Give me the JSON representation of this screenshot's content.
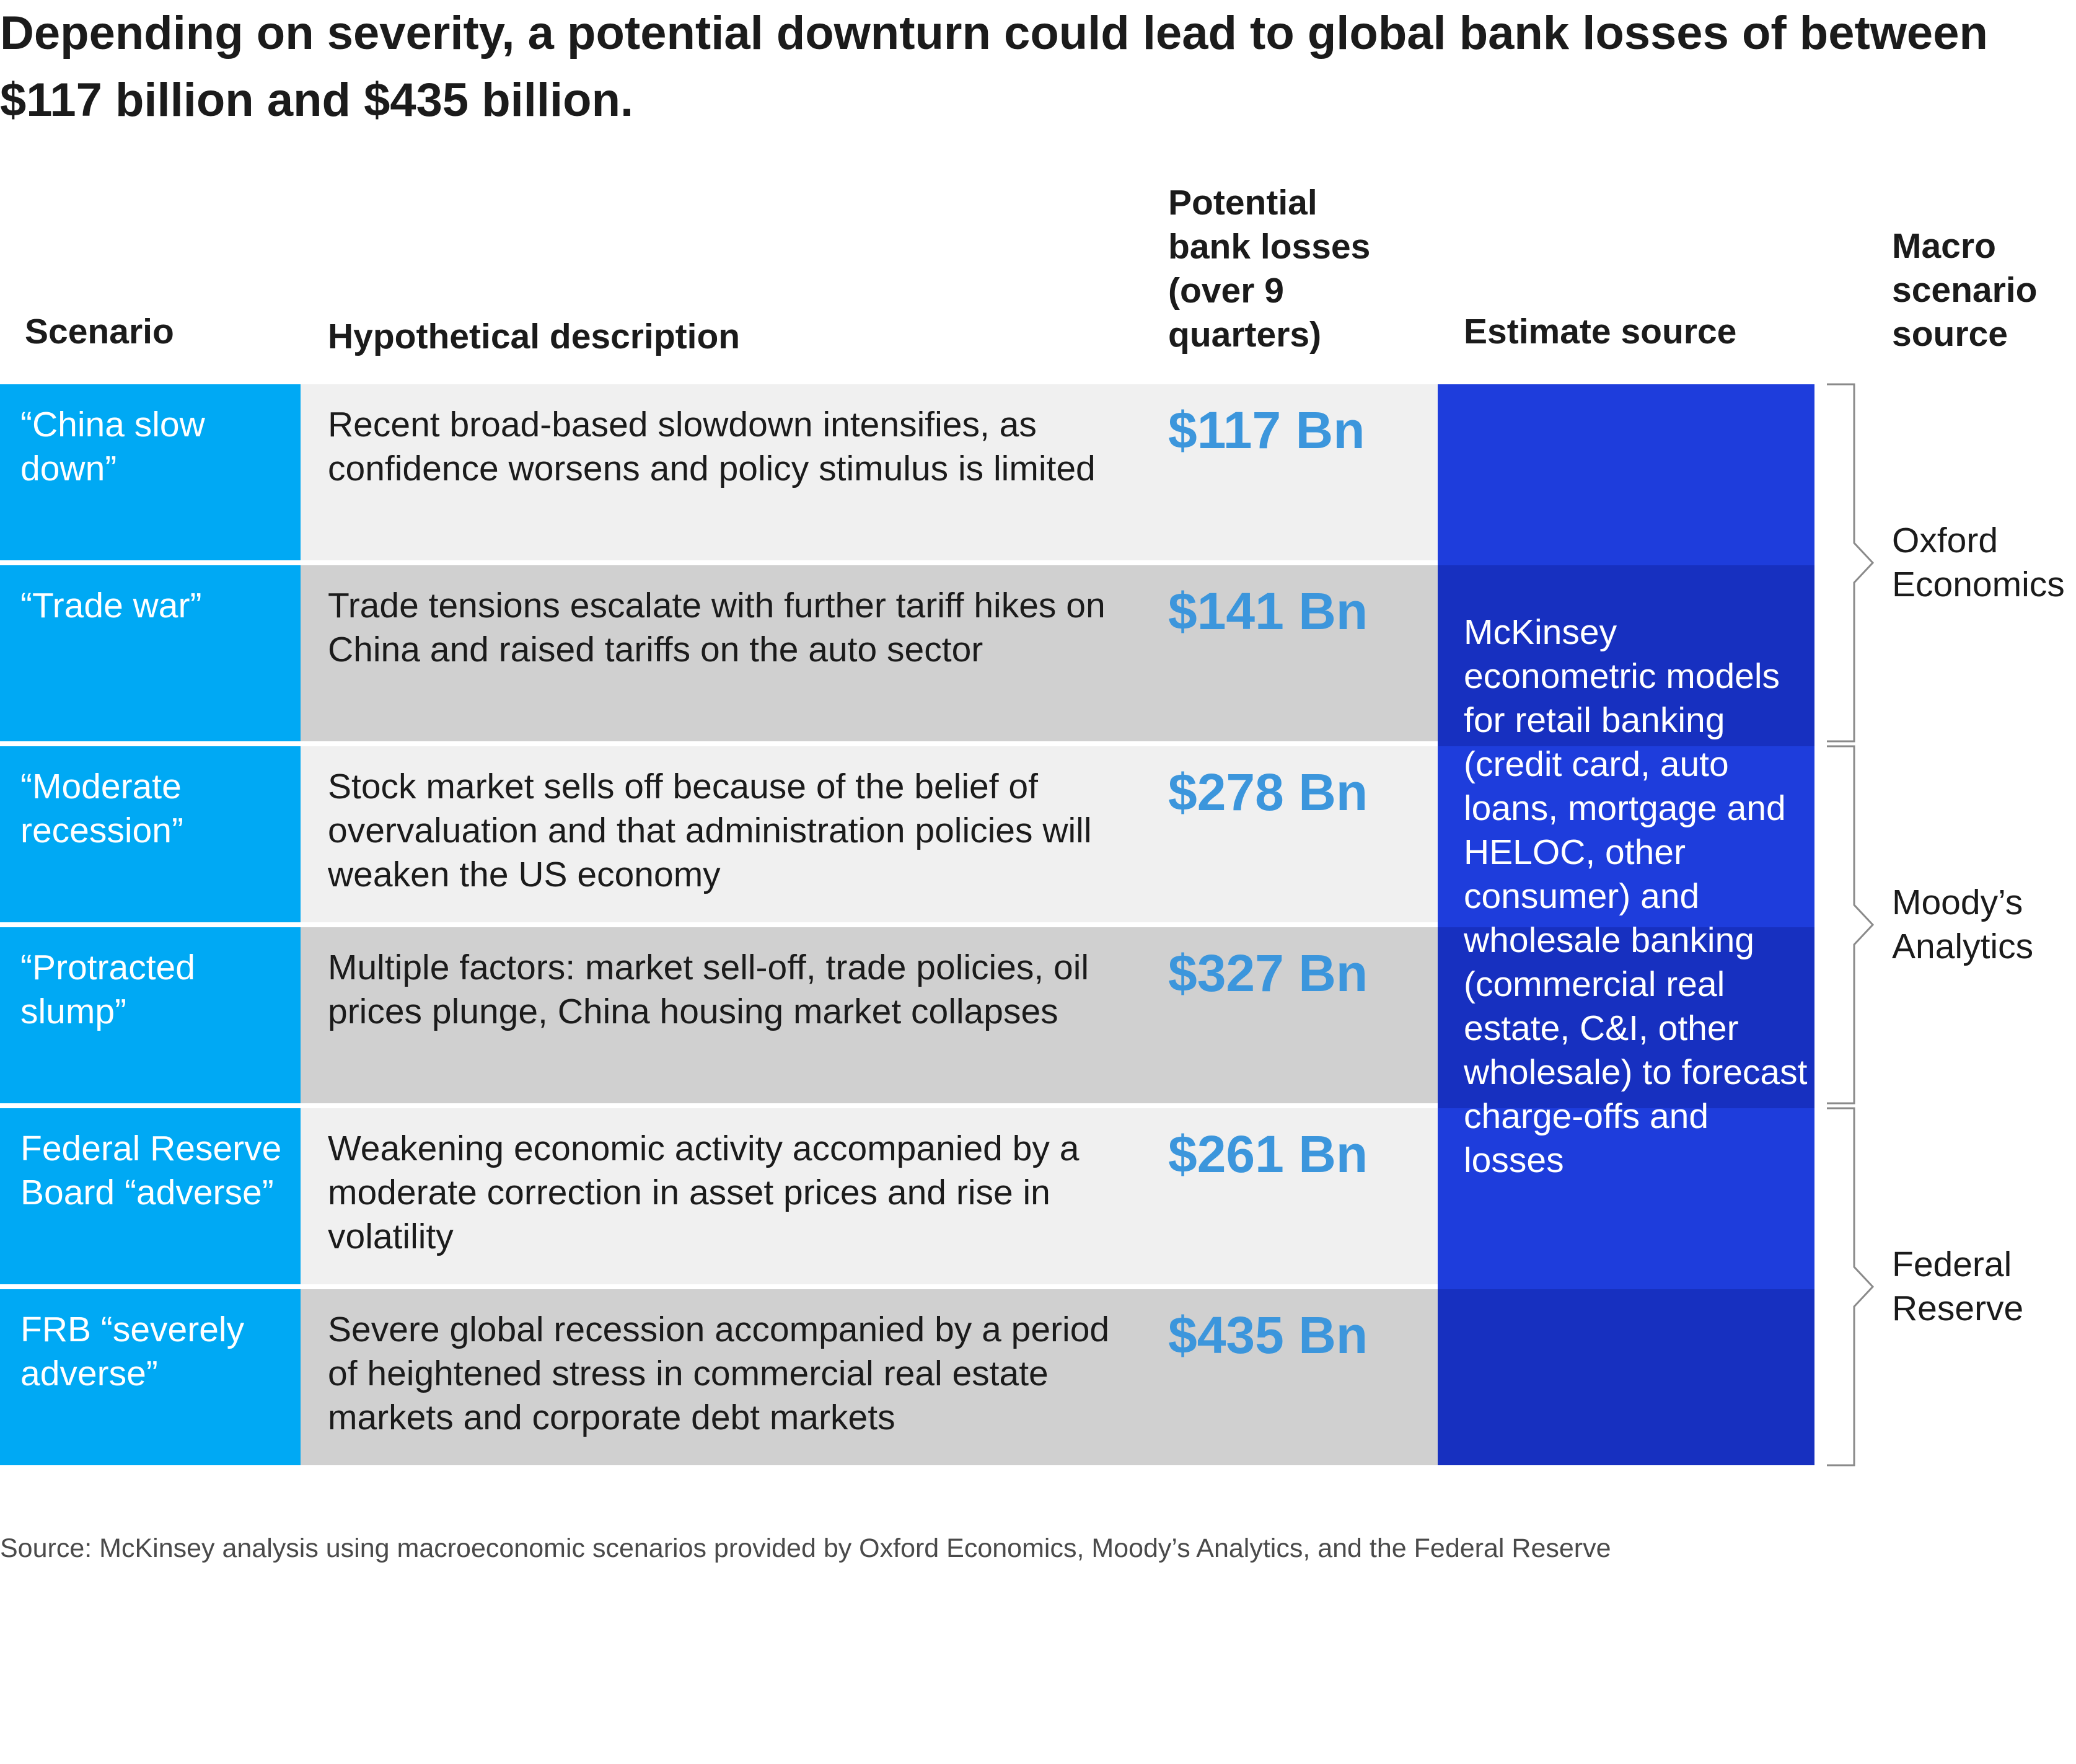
{
  "title": "Depending on severity, a potential downturn could lead to global bank losses of between $117 billion and $435 billion.",
  "headers": {
    "scenario": "Scenario",
    "description": "Hypothetical description",
    "losses": "Potential bank losses (over 9 quarters)",
    "estimate_source": "Estimate source",
    "macro_source": "Macro scenario source"
  },
  "colors": {
    "scenario_bg": "#00a9f4",
    "row_light": "#f0f0f0",
    "row_dark": "#d0d0d0",
    "estimate_blue_light": "#1e3ddc",
    "estimate_blue_dark": "#1730c0",
    "loss_text": "#3c96dc",
    "bracket": "#8a8a8a"
  },
  "chart_data": {
    "type": "table",
    "columns": [
      "Scenario",
      "Hypothetical description",
      "Potential bank losses (over 9 quarters)",
      "Estimate source",
      "Macro scenario source"
    ],
    "rows": [
      {
        "scenario": "“China slow down”",
        "description": "Recent broad-based slowdown intensifies, as confidence worsens and policy stimulus is limited",
        "loss": "$117 Bn",
        "loss_value": 117
      },
      {
        "scenario": "“Trade war”",
        "description": "Trade tensions escalate with further tariff hikes on China and raised tariffs on the auto sector",
        "loss": "$141 Bn",
        "loss_value": 141
      },
      {
        "scenario": "“Moderate recession”",
        "description": "Stock market sells off because of the belief of overvaluation and that administration policies will weaken the US economy",
        "loss": "$278 Bn",
        "loss_value": 278
      },
      {
        "scenario": "“Protracted slump”",
        "description": "Multiple factors: market sell-off, trade policies, oil prices plunge, China housing market collapses",
        "loss": "$327 Bn",
        "loss_value": 327
      },
      {
        "scenario": "Federal Reserve Board “adverse”",
        "description": "Weakening economic activity accompanied by a moderate correction in asset prices and rise in volatility",
        "loss": "$261 Bn",
        "loss_value": 261
      },
      {
        "scenario": "FRB “severely adverse”",
        "description": "Severe global recession accompanied by a period of heightened stress in commercial real estate markets and corporate debt markets",
        "loss": "$435 Bn",
        "loss_value": 435
      }
    ],
    "estimate_source": "McKinsey econometric models for retail banking (credit card, auto loans, mortgage and HELOC, other consumer) and wholesale banking (commercial real estate, C&I, other wholesale) to forecast charge-offs and losses",
    "macro_sources": [
      {
        "name": "Oxford Economics",
        "rows": [
          0,
          1
        ]
      },
      {
        "name": "Moody’s Analytics",
        "rows": [
          2,
          3
        ]
      },
      {
        "name": "Federal Reserve",
        "rows": [
          4,
          5
        ]
      }
    ]
  },
  "source": "Source: McKinsey analysis using macroeconomic scenarios provided by Oxford Economics, Moody’s Analytics, and the Federal Reserve"
}
